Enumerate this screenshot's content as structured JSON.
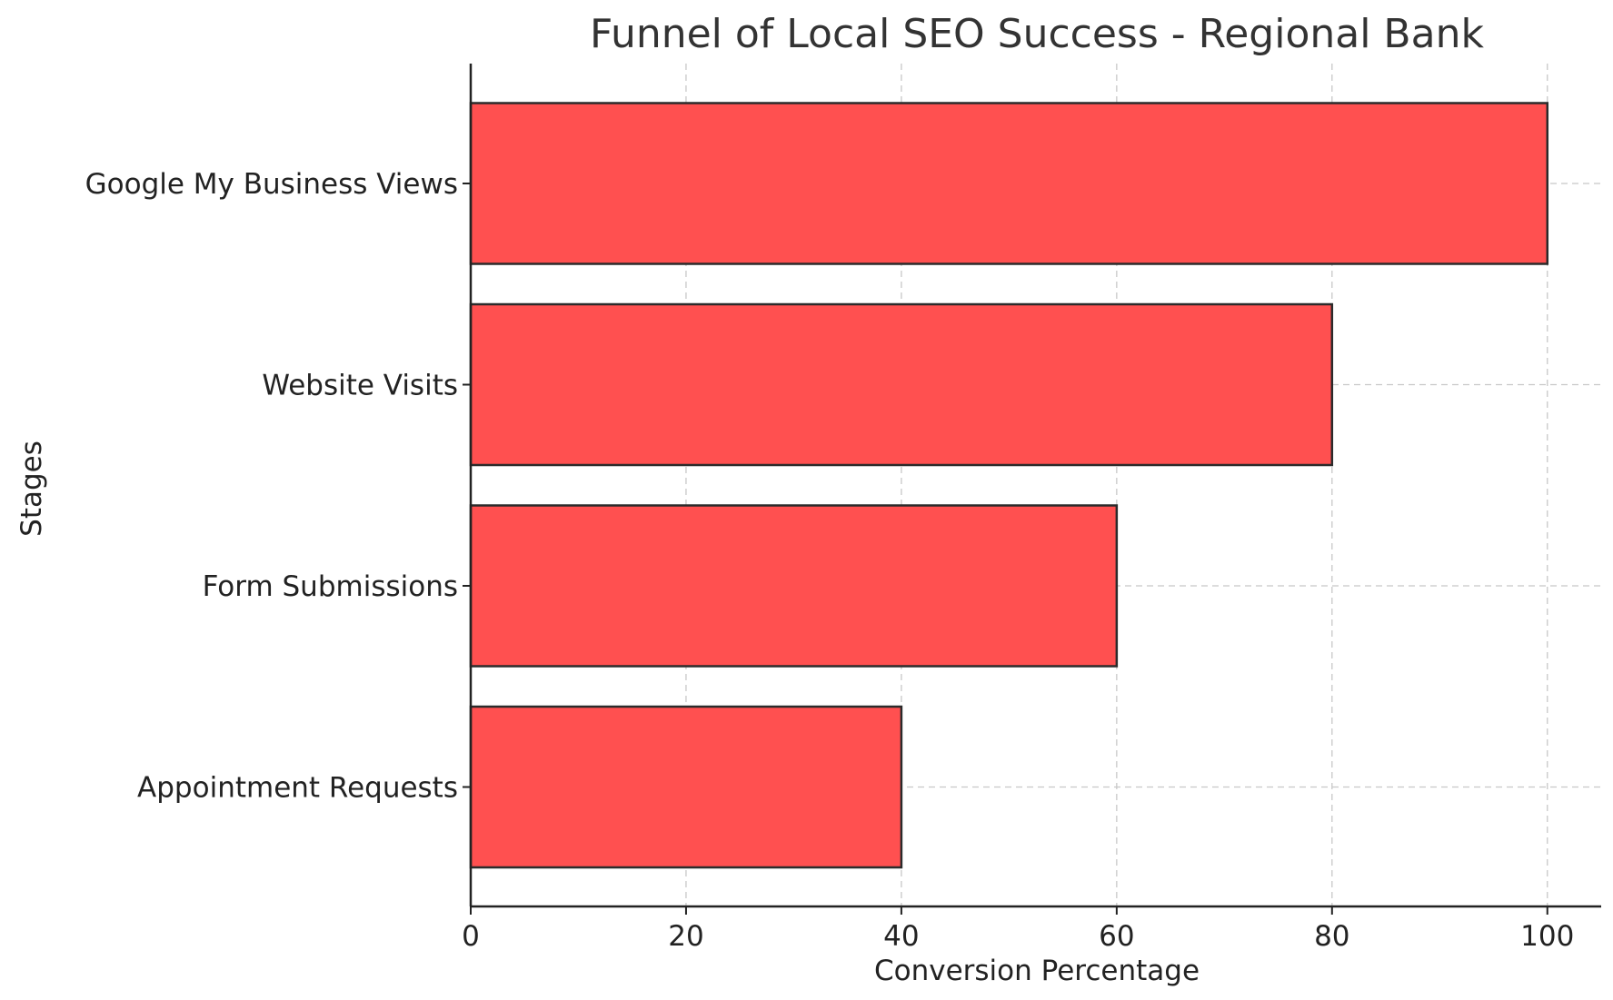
{
  "chart_data": {
    "type": "bar",
    "orientation": "horizontal",
    "title": "Funnel of Local SEO Success - Regional Bank",
    "xlabel": "Conversion Percentage",
    "ylabel": "Stages",
    "categories": [
      "Google My Business Views",
      "Website Visits",
      "Form Submissions",
      "Appointment Requests"
    ],
    "values": [
      100,
      80,
      60,
      40
    ],
    "xlim": [
      0,
      105
    ],
    "xticks": [
      0,
      20,
      40,
      60,
      80,
      100
    ],
    "grid": true,
    "bar_color": "#ff5050",
    "edge_color": "#2b2b2b"
  }
}
